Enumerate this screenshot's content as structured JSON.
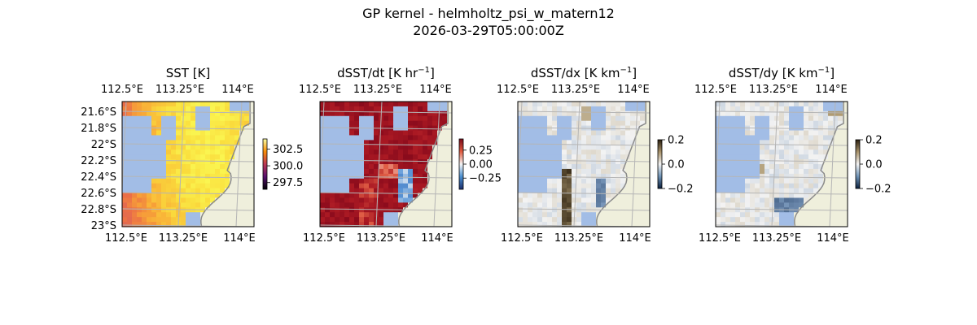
{
  "figure": {
    "title_line1": "GP kernel - helmholtz_psi_w_matern12",
    "title_line2": "2026-03-29T05:00:00Z"
  },
  "colors": {
    "ocean_mask": "#a2bde6",
    "land": "#efefdc",
    "coast": "#8a8a8a",
    "grid": "#b5b5b5"
  },
  "chart_data": [
    {
      "type": "heatmap",
      "title": "SST [K]",
      "colormap": "inferno-yellow",
      "top_ticks": [
        "112.5°E",
        "113.25°E",
        "114°E"
      ],
      "bottom_ticks": [
        "112.5°E",
        "113.25°E",
        "114°E"
      ],
      "left_ticks": [
        "21.6°S",
        "21.8°S",
        "22°S",
        "22.2°S",
        "22.4°S",
        "22.6°S",
        "22.8°S",
        "23°S"
      ],
      "colorbar": {
        "min": 296.5,
        "max": 304,
        "ticks": [
          302.5,
          300.0,
          297.5
        ],
        "tick_labels": [
          "302.5",
          "300.0",
          "297.5"
        ]
      }
    },
    {
      "type": "heatmap",
      "title": "dSST/dt [K hr",
      "title_sup": "−1",
      "title_end": "]",
      "colormap": "diverging-red-blue",
      "top_ticks": [
        "112.5°E",
        "113.25°E",
        "114°E"
      ],
      "bottom_ticks": [
        "112.5°E",
        "113.25°E",
        "114°E"
      ],
      "colorbar": {
        "min": -0.45,
        "max": 0.45,
        "ticks": [
          0.25,
          0.0,
          -0.25
        ],
        "tick_labels": [
          "0.25",
          "0.00",
          "−0.25"
        ]
      }
    },
    {
      "type": "heatmap",
      "title": "dSST/dx [K km",
      "title_sup": "−1",
      "title_end": "]",
      "colormap": "diverging-brown-blue",
      "top_ticks": [
        "112.5°E",
        "113.25°E",
        "114°E"
      ],
      "bottom_ticks": [
        "112.5°E",
        "113.25°E",
        "114°E"
      ],
      "colorbar": {
        "min": -0.2,
        "max": 0.2,
        "ticks": [
          0.2,
          0.0,
          -0.2
        ],
        "tick_labels": [
          "0.2",
          "0.0",
          "−0.2"
        ]
      }
    },
    {
      "type": "heatmap",
      "title": "dSST/dy [K km",
      "title_sup": "−1",
      "title_end": "]",
      "colormap": "diverging-brown-blue",
      "top_ticks": [
        "112.5°E",
        "113.25°E",
        "114°E"
      ],
      "bottom_ticks": [
        "112.5°E",
        "113.25°E",
        "114°E"
      ],
      "colorbar": {
        "min": -0.2,
        "max": 0.2,
        "ticks": [
          0.2,
          0.0,
          -0.2
        ],
        "tick_labels": [
          "0.2",
          "0.0",
          "−0.2"
        ]
      }
    }
  ]
}
